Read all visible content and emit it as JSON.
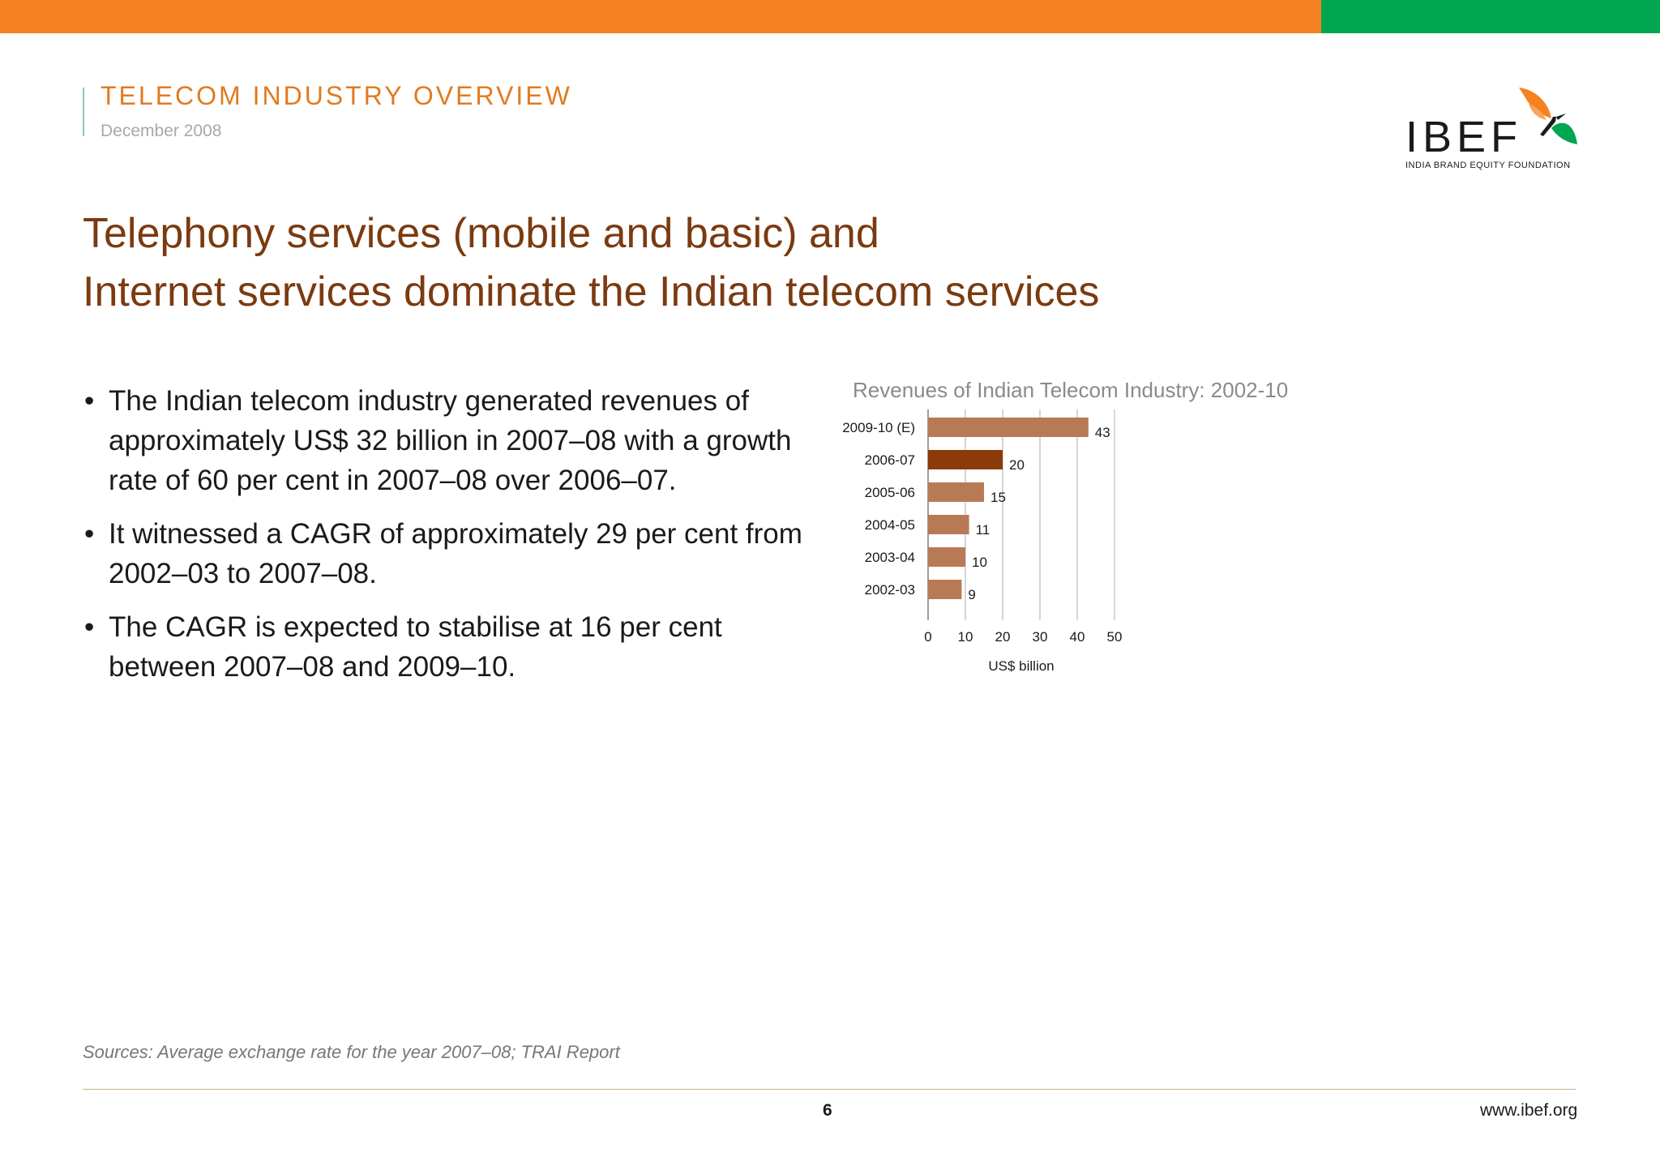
{
  "colors": {
    "top_bar_orange": "#f58220",
    "top_bar_green": "#00a650",
    "header_accent": "#e07b1f",
    "title_brown": "#7b3a10",
    "bar_default": "#b87a55",
    "bar_highlight": "#8b3a0a"
  },
  "header": {
    "title": "TELECOM INDUSTRY OVERVIEW",
    "date": "December 2008"
  },
  "logo": {
    "text": "IBEF",
    "subtitle": "INDIA BRAND EQUITY FOUNDATION",
    "icon": "bird-icon"
  },
  "slide": {
    "title_lines": [
      "Telephony services (mobile and basic) and",
      "Internet services dominate the Indian telecom services"
    ],
    "bullets": [
      "The Indian telecom industry generated revenues of approximately US$ 32 billion in 2007–08 with a growth rate of 60 per cent in 2007–08 over 2006–07.",
      "It witnessed a CAGR of approximately 29 per cent from 2002–03 to 2007–08.",
      "The CAGR is expected to stabilise at 16 per cent between 2007–08 and 2009–10."
    ]
  },
  "chart_data": {
    "type": "bar",
    "orientation": "horizontal",
    "title": "Revenues of Indian Telecom Industry: 2002-10",
    "xlabel": "US$ billion",
    "ylabel": "",
    "categories": [
      "2009-10 (E)",
      "2006-07",
      "2005-06",
      "2004-05",
      "2003-04",
      "2002-03"
    ],
    "values": [
      43,
      20,
      15,
      11,
      10,
      9
    ],
    "highlight_category": "2006-07",
    "xlim": [
      0,
      50
    ],
    "xticks": [
      0,
      10,
      20,
      30,
      40,
      50
    ],
    "grid": true,
    "legend": "none"
  },
  "footer": {
    "sources": "Sources: Average exchange rate for the year 2007–08; TRAI Report",
    "page_number": "6",
    "url": "www.ibef.org"
  }
}
